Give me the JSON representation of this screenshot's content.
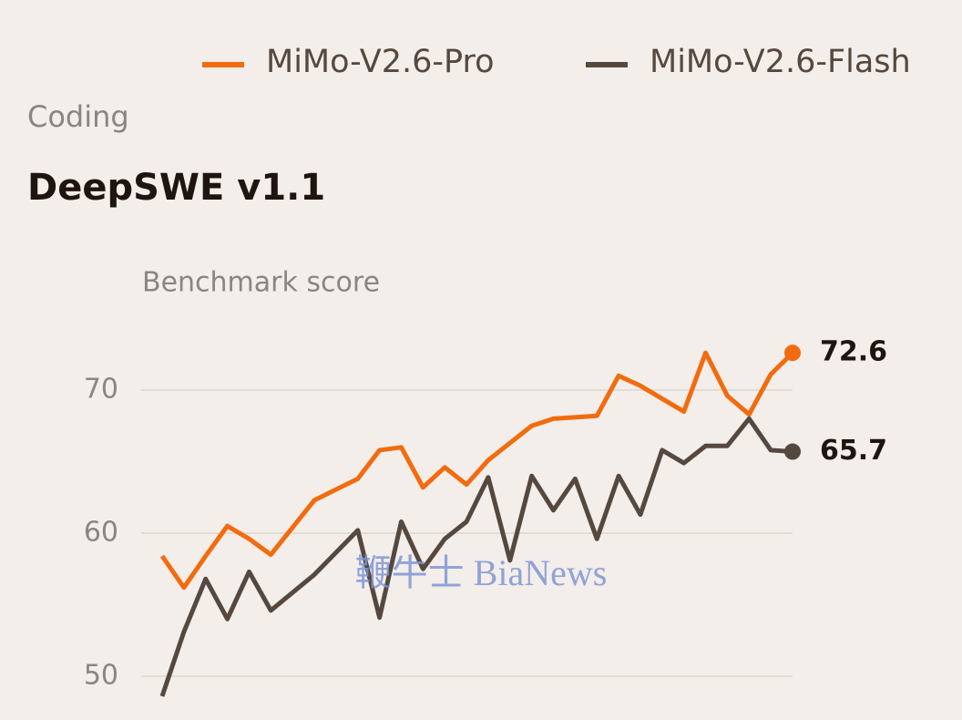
{
  "category": "Coding",
  "watermark": "鞭牛士 BiaNews",
  "chart_data": {
    "type": "line",
    "title": "DeepSWE v1.1",
    "y_label": "Benchmark score",
    "x": [
      0,
      1,
      2,
      3,
      4,
      5,
      7,
      9,
      10,
      11,
      12,
      13,
      14,
      15,
      16,
      17,
      18,
      19,
      20,
      21,
      22,
      23,
      24,
      25,
      26,
      27,
      28,
      29
    ],
    "xlim": [
      0,
      29
    ],
    "series": [
      {
        "name": "MiMo-V2.6-Pro",
        "color": "#f26b0f",
        "values": [
          58.4,
          56.2,
          58.4,
          60.5,
          59.6,
          58.5,
          62.3,
          63.8,
          65.8,
          66.0,
          63.2,
          64.6,
          63.4,
          65.1,
          66.3,
          67.5,
          68.0,
          68.1,
          68.2,
          71.0,
          70.3,
          69.4,
          68.5,
          72.6,
          69.6,
          68.3,
          71.1,
          72.6
        ]
      },
      {
        "name": "MiMo-V2.6-Flash",
        "color": "#55483f",
        "values": [
          48.6,
          53.1,
          56.8,
          54.0,
          57.3,
          54.6,
          57.1,
          60.2,
          54.1,
          60.8,
          57.5,
          59.6,
          60.8,
          63.9,
          58.1,
          64.0,
          61.6,
          63.8,
          59.6,
          64.0,
          61.3,
          65.8,
          64.9,
          66.1,
          66.1,
          68.0,
          65.8,
          65.7
        ]
      }
    ],
    "ylim": [
      47,
      73
    ],
    "yticks": [
      50,
      60,
      70
    ],
    "grid": true,
    "legend": "top-right"
  }
}
